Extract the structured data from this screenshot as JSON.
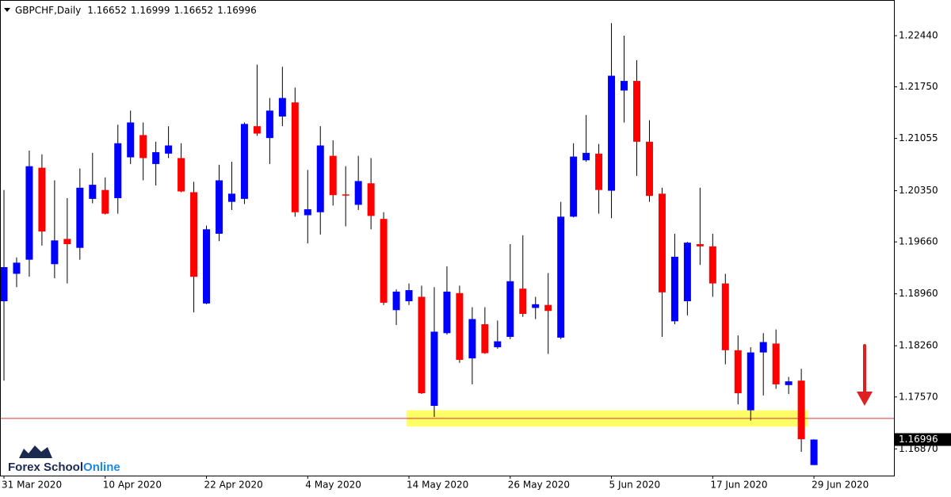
{
  "chart_data": {
    "type": "candlestick",
    "title": "GBPCHF,Daily",
    "categories": [
      "31 Mar 2020",
      null,
      null,
      null,
      null,
      null,
      null,
      null,
      "10 Apr 2020",
      null,
      null,
      null,
      null,
      null,
      null,
      null,
      "22 Apr 2020",
      null,
      null,
      null,
      null,
      null,
      null,
      null,
      "4 May 2020",
      null,
      null,
      null,
      null,
      null,
      null,
      null,
      "14 May 2020",
      null,
      null,
      null,
      null,
      null,
      null,
      null,
      "26 May 2020",
      null,
      null,
      null,
      null,
      null,
      null,
      null,
      "5 Jun 2020",
      null,
      null,
      null,
      null,
      null,
      null,
      null,
      "17 Jun 2020",
      null,
      null,
      null,
      null,
      null,
      null,
      null,
      "29 Jun 2020"
    ],
    "open": [
      1.1886,
      1.1923,
      1.1942,
      1.2066,
      1.1936,
      1.197,
      1.1958,
      1.2024,
      1.2036,
      1.2025,
      1.208,
      1.211,
      1.2071,
      1.2085,
      1.2079,
      1.2033,
      1.1883,
      1.1977,
      1.202,
      1.2024,
      1.2122,
      1.2106,
      1.2135,
      1.2154,
      1.2002,
      1.2006,
      1.2082,
      1.203,
      1.2016,
      1.2045,
      1.1997,
      1.1874,
      1.1886,
      1.1892,
      1.1745,
      1.1843,
      1.1897,
      1.1809,
      1.1855,
      1.1824,
      1.1838,
      1.1903,
      1.1877,
      1.1881,
      1.1837,
      1.2,
      1.2076,
      1.2085,
      1.2035,
      1.217,
      1.2183,
      1.2101,
      1.2031,
      1.1859,
      1.1886,
      1.1963,
      1.196,
      1.191,
      1.182,
      1.1739,
      1.1817,
      1.1829,
      1.1773,
      1.1779,
      1.16652
    ],
    "high": [
      1.2036,
      1.1945,
      1.2089,
      1.2084,
      1.2049,
      1.2025,
      1.2065,
      1.2086,
      1.2053,
      1.2124,
      1.2143,
      1.2127,
      1.2101,
      1.2122,
      1.2099,
      1.2047,
      1.1988,
      1.207,
      1.2074,
      1.2127,
      1.2205,
      1.216,
      1.2202,
      1.2174,
      1.2063,
      1.2122,
      1.2103,
      1.2068,
      1.2082,
      1.2079,
      1.2006,
      1.1902,
      1.191,
      1.1907,
      1.1905,
      1.1933,
      1.1907,
      1.1878,
      1.1878,
      1.186,
      1.1963,
      1.1975,
      1.1892,
      1.1924,
      1.202,
      1.2099,
      1.2137,
      1.2098,
      1.2261,
      1.2244,
      1.2211,
      1.213,
      1.2039,
      1.1977,
      1.1966,
      1.2039,
      1.1977,
      1.1923,
      1.184,
      1.1824,
      1.1843,
      1.1848,
      1.1784,
      1.1795,
      1.16999
    ],
    "low": [
      1.1779,
      1.1905,
      1.1919,
      1.1961,
      1.1917,
      1.191,
      1.1942,
      1.2018,
      1.2003,
      1.2004,
      1.2071,
      1.2049,
      1.2042,
      1.2079,
      1.2033,
      1.1871,
      1.1882,
      1.1967,
      1.2009,
      1.2017,
      1.2109,
      1.2071,
      1.2122,
      1.2,
      1.1964,
      1.1976,
      1.2015,
      1.1987,
      1.2009,
      1.1983,
      1.1881,
      1.1854,
      1.1881,
      1.1761,
      1.173,
      1.1841,
      1.1803,
      1.1774,
      1.1815,
      1.1822,
      1.1835,
      1.1865,
      1.1862,
      1.1815,
      1.1835,
      1.1999,
      1.2074,
      1.2004,
      1.1998,
      1.2127,
      1.2055,
      1.202,
      1.1838,
      1.1855,
      1.1867,
      1.1935,
      1.1892,
      1.1801,
      1.1747,
      1.1725,
      1.1759,
      1.1768,
      1.1761,
      1.1683,
      1.16652
    ],
    "close": [
      1.1932,
      1.1938,
      1.2068,
      1.198,
      1.1968,
      1.1963,
      1.2039,
      1.2043,
      1.2004,
      1.2099,
      1.2127,
      1.2079,
      1.2087,
      1.2096,
      1.2034,
      1.1919,
      1.1983,
      1.2049,
      1.2031,
      1.2125,
      1.2112,
      1.2143,
      1.216,
      1.2006,
      1.201,
      1.2096,
      1.2029,
      1.2029,
      1.2048,
      1.2001,
      1.1884,
      1.1899,
      1.1901,
      1.1762,
      1.1845,
      1.1899,
      1.1807,
      1.1862,
      1.1816,
      1.1832,
      1.1913,
      1.1869,
      1.1882,
      1.1873,
      1.2,
      1.2081,
      1.2086,
      1.2036,
      1.219,
      1.2183,
      1.2101,
      1.2028,
      1.1898,
      1.1946,
      1.1965,
      1.196,
      1.191,
      1.182,
      1.1762,
      1.1817,
      1.1831,
      1.1774,
      1.1778,
      1.17,
      1.16996
    ],
    "up_color": "#0000ff",
    "down_color": "#ff0000",
    "ylim": [
      1.1651,
      1.2291
    ],
    "yticks": [
      {
        "value": 1.2244,
        "label": "1.22440"
      },
      {
        "value": 1.2175,
        "label": "1.21750"
      },
      1.21055,
      {
        "value": 1.2035,
        "label": "1.20350"
      },
      {
        "value": 1.1966,
        "label": "1.19660"
      },
      {
        "value": 1.1896,
        "label": "1.18960"
      },
      {
        "value": 1.1826,
        "label": "1.18260"
      },
      {
        "value": 1.1757,
        "label": "1.17570"
      },
      {
        "value": 1.1687,
        "label": "1.16870"
      }
    ],
    "grid": false,
    "support_line": {
      "value": 1.1728,
      "color": "#e03030"
    },
    "support_zone": {
      "range": [
        1.1717,
        1.1739
      ],
      "color": "#ffff66"
    },
    "watermark": {
      "part1": "Forex School",
      "part2": "Online"
    }
  }
}
